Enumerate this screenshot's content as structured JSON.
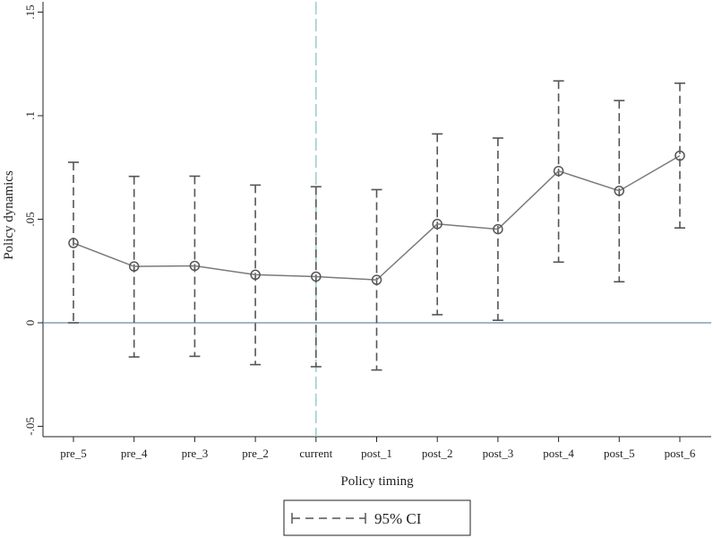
{
  "chart_data": {
    "type": "line",
    "title": "",
    "xlabel": "Policy timing",
    "ylabel": "Policy dynamics",
    "categories": [
      "pre_5",
      "pre_4",
      "pre_3",
      "pre_2",
      "current",
      "post_1",
      "post_2",
      "post_3",
      "post_4",
      "post_5",
      "post_6"
    ],
    "series": [
      {
        "values": [
          0.0385,
          0.0272,
          0.0275,
          0.0232,
          0.0223,
          0.0207,
          0.0477,
          0.0452,
          0.0733,
          0.0637,
          0.0807
        ]
      },
      {
        "name": "95% CI",
        "lower": [
          0.0,
          -0.0165,
          -0.0162,
          -0.0202,
          -0.0212,
          -0.0228,
          0.0039,
          0.0012,
          0.0293,
          0.0198,
          0.0458
        ],
        "upper": [
          0.0775,
          0.0707,
          0.0708,
          0.0665,
          0.0657,
          0.0643,
          0.0912,
          0.0892,
          0.1168,
          0.1073,
          0.1157
        ]
      }
    ],
    "yticks": [
      -0.05,
      0,
      0.05,
      0.1,
      0.15
    ],
    "ytick_labels": [
      "-.05",
      "0",
      ".05",
      ".1",
      ".15"
    ],
    "ylim": [
      -0.055,
      0.155
    ],
    "reference_line_y": 0,
    "reference_line_x": "current",
    "grid": false,
    "legend": {
      "position": "bottom",
      "entries": [
        "95% CI"
      ]
    },
    "colors": {
      "line": "#7a7a7a",
      "ci": "#555555",
      "zero_line": "#6b8cae",
      "vline": "#8fc3c3",
      "axis": "#222222"
    }
  }
}
